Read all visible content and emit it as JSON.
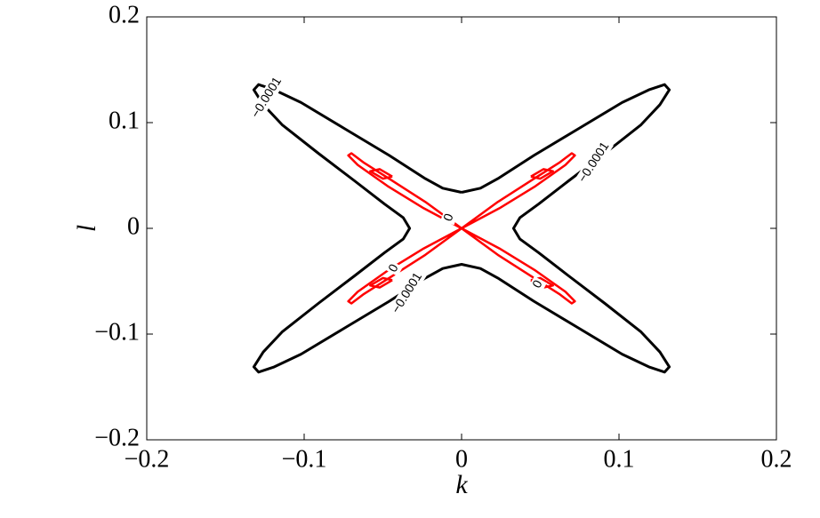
{
  "chart_data": {
    "type": "contour",
    "xlabel": "k",
    "ylabel": "l",
    "xlim": [
      -0.2,
      0.2
    ],
    "ylim": [
      -0.2,
      0.2
    ],
    "xticks": [
      {
        "value": -0.2,
        "label": "−0.2"
      },
      {
        "value": -0.1,
        "label": "−0.1"
      },
      0,
      0.1,
      0.2
    ],
    "yticks": [
      {
        "value": -0.2,
        "label": "−0.2"
      },
      {
        "value": -0.1,
        "label": "−0.1"
      },
      0,
      0.1,
      0.2
    ],
    "levels": [
      {
        "level": "−0.0001",
        "color": "#000000",
        "lines": [
          {
            "x": [
              0,
              0.012,
              0.023,
              0.046,
              0.074,
              0.102,
              0.119,
              0.129,
              0.132,
              0.126,
              0.114,
              0.091,
              0.068,
              0.049,
              0.037,
              0.033,
              0.037,
              0.049,
              0.068,
              0.091,
              0.114,
              0.126,
              0.132,
              0.129,
              0.119,
              0.102,
              0.074,
              0.046,
              0.023,
              0.012,
              0,
              -0.012,
              -0.023,
              -0.046,
              -0.074,
              -0.102,
              -0.119,
              -0.129,
              -0.132,
              -0.126,
              -0.114,
              -0.091,
              -0.068,
              -0.049,
              -0.037,
              -0.033,
              -0.037,
              -0.049,
              -0.068,
              -0.091,
              -0.114,
              -0.126,
              -0.132,
              -0.129,
              -0.119,
              -0.102,
              -0.074,
              -0.046,
              -0.023,
              -0.012,
              0
            ],
            "y": [
              0.034,
              0.038,
              0.047,
              0.069,
              0.094,
              0.119,
              0.131,
              0.136,
              0.131,
              0.117,
              0.098,
              0.071,
              0.045,
              0.023,
              0.01,
              0,
              -0.01,
              -0.023,
              -0.045,
              -0.071,
              -0.098,
              -0.117,
              -0.131,
              -0.136,
              -0.131,
              -0.119,
              -0.094,
              -0.069,
              -0.047,
              -0.038,
              -0.034,
              -0.038,
              -0.047,
              -0.069,
              -0.094,
              -0.119,
              -0.131,
              -0.136,
              -0.131,
              -0.117,
              -0.098,
              -0.071,
              -0.045,
              -0.023,
              -0.01,
              0,
              0.01,
              0.023,
              0.045,
              0.071,
              0.098,
              0.117,
              0.131,
              0.136,
              0.131,
              0.119,
              0.094,
              0.069,
              0.047,
              0.038,
              0.034
            ]
          }
        ]
      },
      {
        "level": 0,
        "color": "#ff0000",
        "lines": [
          {
            "x": [
              0,
              0.023,
              0.045,
              0.062,
              0.07,
              0.072,
              0.066,
              0.047,
              0.024,
              0
            ],
            "y": [
              0,
              0.025,
              0.046,
              0.062,
              0.071,
              0.069,
              0.06,
              0.04,
              0.019,
              0
            ]
          },
          {
            "x": [
              0,
              0.023,
              0.045,
              0.062,
              0.07,
              0.072,
              0.066,
              0.047,
              0.024,
              0
            ],
            "y": [
              0,
              -0.025,
              -0.046,
              -0.062,
              -0.071,
              -0.069,
              -0.06,
              -0.04,
              -0.019,
              0
            ]
          },
          {
            "x": [
              0,
              -0.023,
              -0.045,
              -0.062,
              -0.07,
              -0.072,
              -0.066,
              -0.047,
              -0.024,
              0
            ],
            "y": [
              0,
              -0.025,
              -0.046,
              -0.062,
              -0.071,
              -0.069,
              -0.06,
              -0.04,
              -0.019,
              0
            ]
          },
          {
            "x": [
              0,
              -0.023,
              -0.045,
              -0.062,
              -0.07,
              -0.072,
              -0.066,
              -0.047,
              -0.024,
              0
            ],
            "y": [
              0,
              0.025,
              0.046,
              0.062,
              0.071,
              0.069,
              0.06,
              0.04,
              0.019,
              0
            ]
          },
          {
            "x": [
              0.044,
              0.052,
              0.058,
              0.05,
              0.044
            ],
            "y": [
              0.049,
              0.056,
              0.054,
              0.047,
              0.049
            ]
          },
          {
            "x": [
              0.044,
              0.052,
              0.058,
              0.05,
              0.044
            ],
            "y": [
              -0.049,
              -0.056,
              -0.054,
              -0.047,
              -0.049
            ]
          },
          {
            "x": [
              -0.044,
              -0.052,
              -0.058,
              -0.05,
              -0.044
            ],
            "y": [
              -0.049,
              -0.056,
              -0.054,
              -0.047,
              -0.049
            ]
          },
          {
            "x": [
              -0.044,
              -0.052,
              -0.058,
              -0.05,
              -0.044
            ],
            "y": [
              0.049,
              0.056,
              0.054,
              0.047,
              0.049
            ]
          }
        ]
      }
    ]
  }
}
